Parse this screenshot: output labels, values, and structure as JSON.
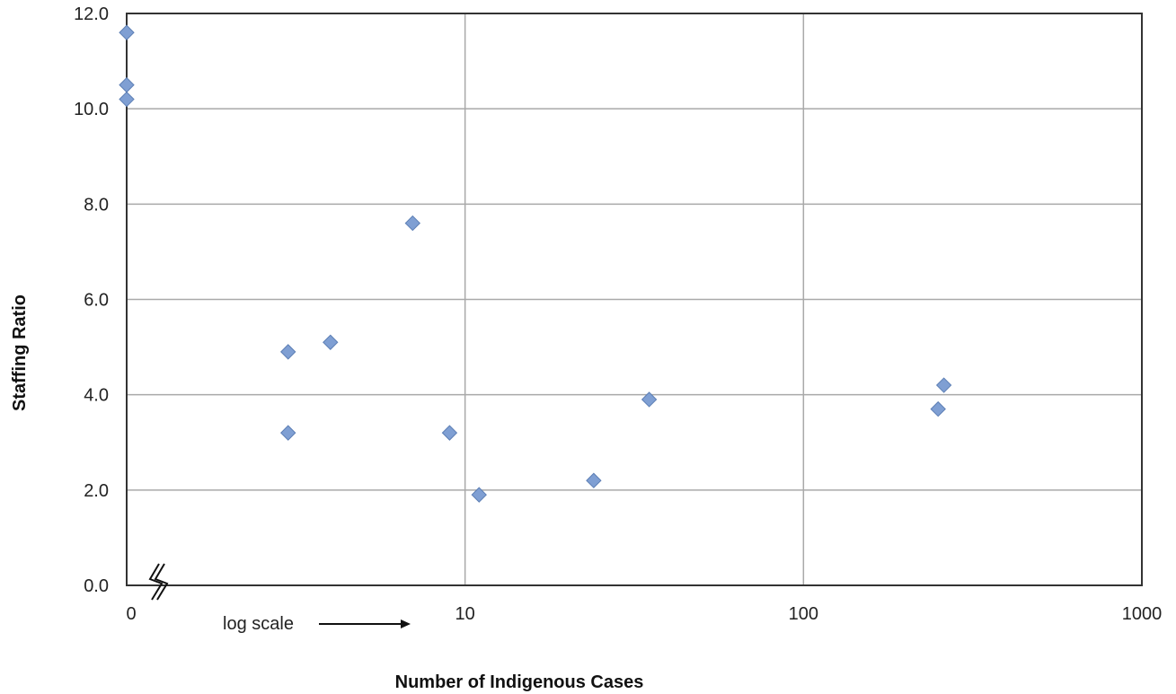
{
  "chart_data": {
    "type": "scatter",
    "title": "",
    "xlabel": "Number of Indigenous Cases",
    "ylabel": "Staffing Ratio",
    "x_scale": "log",
    "x_axis_break": true,
    "x_ticks": [
      "0",
      "10",
      "100",
      "1000"
    ],
    "y_ticks": [
      "0.0",
      "2.0",
      "4.0",
      "6.0",
      "8.0",
      "10.0",
      "12.0"
    ],
    "ylim": [
      0,
      12
    ],
    "grid": true,
    "annotation": "log scale",
    "marker_color": "#7f9fd3",
    "points": [
      {
        "x": 0,
        "y": 11.6
      },
      {
        "x": 0,
        "y": 10.5
      },
      {
        "x": 0,
        "y": 10.2
      },
      {
        "x": 3,
        "y": 4.9
      },
      {
        "x": 3,
        "y": 3.2
      },
      {
        "x": 4,
        "y": 5.1
      },
      {
        "x": 7,
        "y": 7.6
      },
      {
        "x": 9,
        "y": 3.2
      },
      {
        "x": 11,
        "y": 1.9
      },
      {
        "x": 24,
        "y": 2.2
      },
      {
        "x": 35,
        "y": 3.9
      },
      {
        "x": 250,
        "y": 3.7
      },
      {
        "x": 260,
        "y": 4.2
      }
    ]
  }
}
